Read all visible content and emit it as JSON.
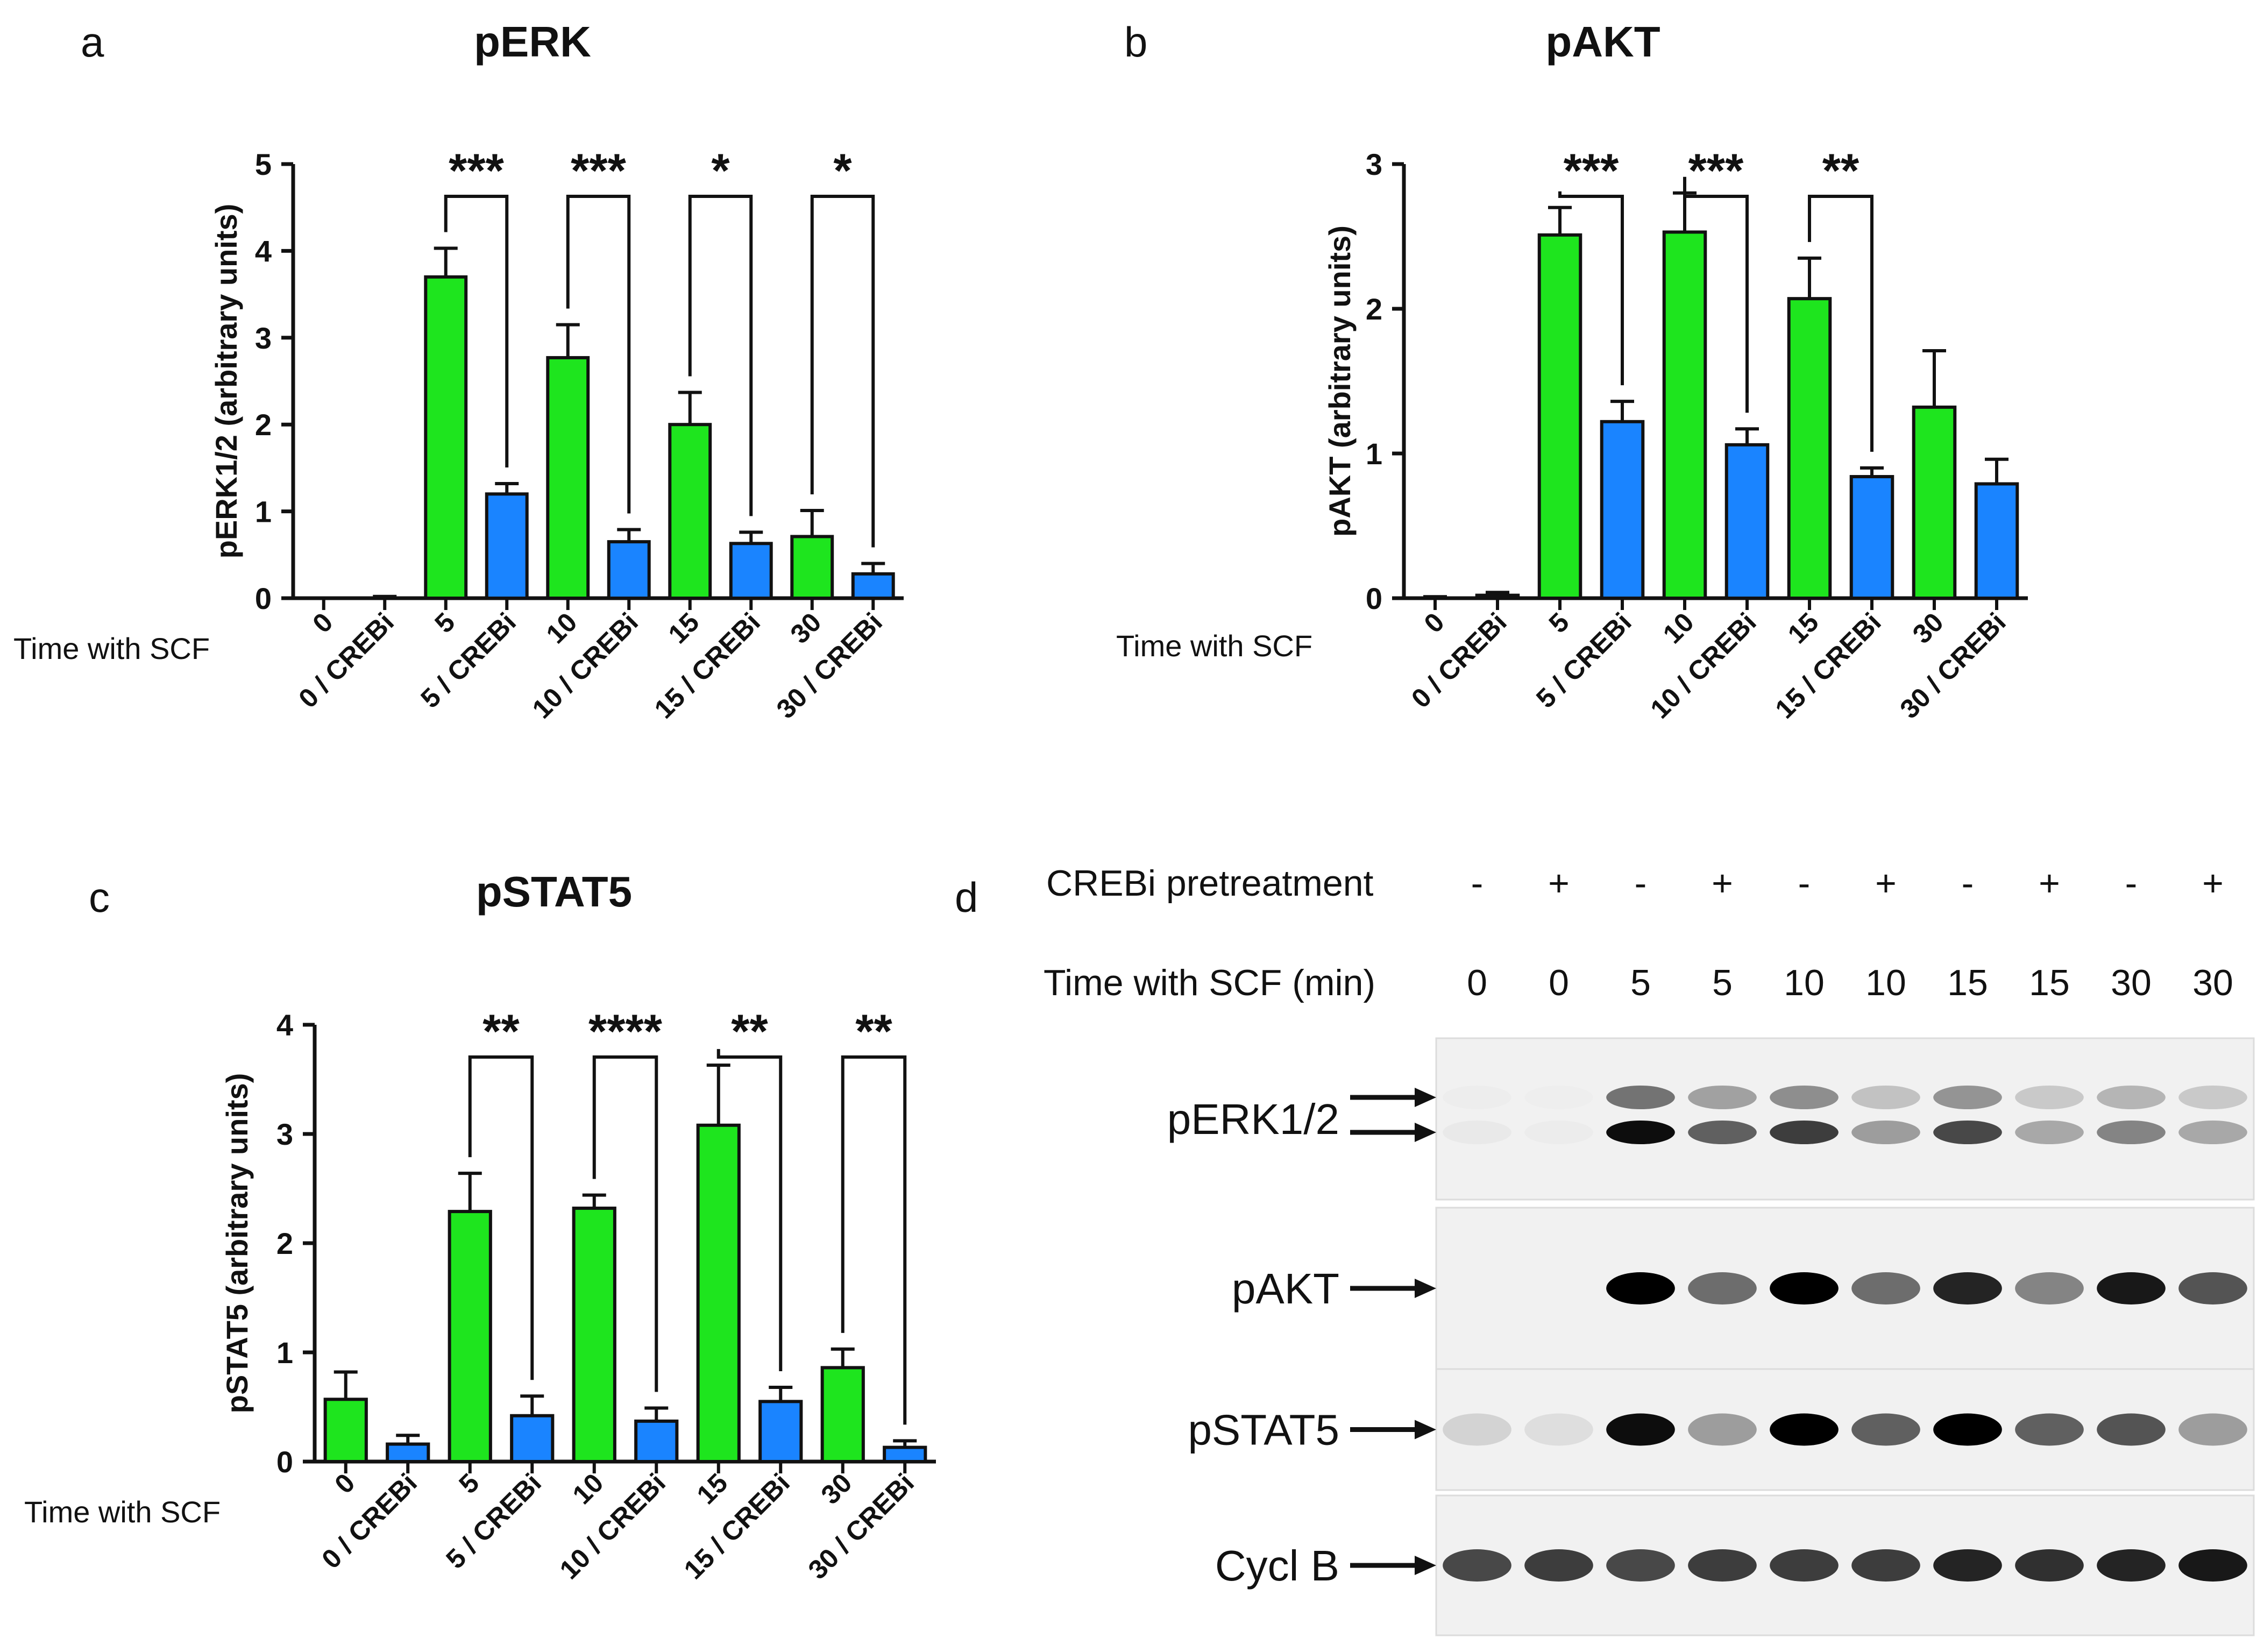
{
  "panels": [
    "a",
    "b",
    "c",
    "d"
  ],
  "colors": {
    "untreated": "#1ee51e",
    "crebi": "#1a84ff"
  },
  "chart_data": [
    {
      "type": "bar",
      "panel": "a",
      "title": "pERK",
      "ylabel": "pERK1/2 (arbitrary units)",
      "row_label": "Time with SCF",
      "categories": [
        "0",
        "0 / CREBi",
        "5",
        "5 / CREBi",
        "10",
        "10 / CREBi",
        "15",
        "15 / CREBi",
        "30",
        "30 / CREBi"
      ],
      "values": [
        0.0,
        0.0,
        3.7,
        1.2,
        2.77,
        0.65,
        2.0,
        0.63,
        0.71,
        0.28
      ],
      "errors": [
        0.0,
        0.02,
        0.33,
        0.12,
        0.38,
        0.14,
        0.37,
        0.13,
        0.3,
        0.12
      ],
      "ylim": [
        0,
        5
      ],
      "yticks": [
        "0",
        "1",
        "2",
        "3",
        "4",
        "5"
      ],
      "significance": [
        {
          "pair": [
            2,
            3
          ],
          "label": "***"
        },
        {
          "pair": [
            4,
            5
          ],
          "label": "***"
        },
        {
          "pair": [
            6,
            7
          ],
          "label": "*"
        },
        {
          "pair": [
            8,
            9
          ],
          "label": "*"
        }
      ]
    },
    {
      "type": "bar",
      "panel": "b",
      "title": "pAKT",
      "ylabel": "pAKT (arbitrary units)",
      "row_label": "Time with SCF",
      "categories": [
        "0",
        "0 / CREBi",
        "5",
        "5 / CREBi",
        "10",
        "10 / CREBi",
        "15",
        "15 / CREBi",
        "30",
        "30 / CREBi"
      ],
      "values": [
        0.0,
        0.02,
        2.51,
        1.22,
        2.53,
        1.06,
        2.07,
        0.84,
        1.32,
        0.79
      ],
      "errors": [
        0.01,
        0.02,
        0.19,
        0.14,
        0.27,
        0.11,
        0.28,
        0.06,
        0.39,
        0.17
      ],
      "ylim": [
        0,
        3
      ],
      "yticks": [
        "0",
        "1",
        "2",
        "3"
      ],
      "significance": [
        {
          "pair": [
            2,
            3
          ],
          "label": "***"
        },
        {
          "pair": [
            4,
            5
          ],
          "label": "***"
        },
        {
          "pair": [
            6,
            7
          ],
          "label": "**"
        }
      ]
    },
    {
      "type": "bar",
      "panel": "c",
      "title": "pSTAT5",
      "ylabel": "pSTAT5 (arbitrary units)",
      "row_label": "Time with SCF",
      "categories": [
        "0",
        "0 / CREBi",
        "5",
        "5 / CREBi",
        "10",
        "10 / CREBi",
        "15",
        "15 / CREBi",
        "30",
        "30 / CREBi"
      ],
      "values": [
        0.57,
        0.16,
        2.29,
        0.42,
        2.32,
        0.37,
        3.08,
        0.55,
        0.86,
        0.13
      ],
      "errors": [
        0.25,
        0.08,
        0.35,
        0.18,
        0.12,
        0.12,
        0.55,
        0.13,
        0.17,
        0.06
      ],
      "ylim": [
        0,
        4
      ],
      "yticks": [
        "0",
        "1",
        "2",
        "3",
        "4"
      ],
      "significance": [
        {
          "pair": [
            2,
            3
          ],
          "label": "**"
        },
        {
          "pair": [
            4,
            5
          ],
          "label": "****"
        },
        {
          "pair": [
            6,
            7
          ],
          "label": "**"
        },
        {
          "pair": [
            8,
            9
          ],
          "label": "**"
        }
      ]
    }
  ],
  "blot": {
    "pretreatment_label": "CREBi pretreatment",
    "pretreatment": [
      "-",
      "+",
      "-",
      "+",
      "-",
      "+",
      "-",
      "+",
      "-",
      "+"
    ],
    "time_label": "Time with SCF (min)",
    "times": [
      "0",
      "0",
      "5",
      "5",
      "10",
      "10",
      "15",
      "15",
      "30",
      "30"
    ],
    "rows": [
      {
        "label": "pERK1/2",
        "arrows": 2,
        "intensity": [
          0.03,
          0.02,
          0.95,
          0.6,
          0.75,
          0.35,
          0.7,
          0.3,
          0.45,
          0.3
        ]
      },
      {
        "label": "pAKT",
        "arrows": 1,
        "intensity": [
          0.0,
          0.0,
          1.0,
          0.55,
          1.0,
          0.55,
          0.85,
          0.45,
          0.9,
          0.65
        ]
      },
      {
        "label": "pSTAT5",
        "arrows": 1,
        "intensity": [
          0.12,
          0.08,
          0.95,
          0.35,
          1.0,
          0.6,
          1.0,
          0.6,
          0.65,
          0.35
        ]
      },
      {
        "label": "Cycl B",
        "arrows": 1,
        "intensity": [
          0.7,
          0.75,
          0.7,
          0.75,
          0.75,
          0.75,
          0.85,
          0.8,
          0.85,
          0.9
        ]
      }
    ]
  }
}
